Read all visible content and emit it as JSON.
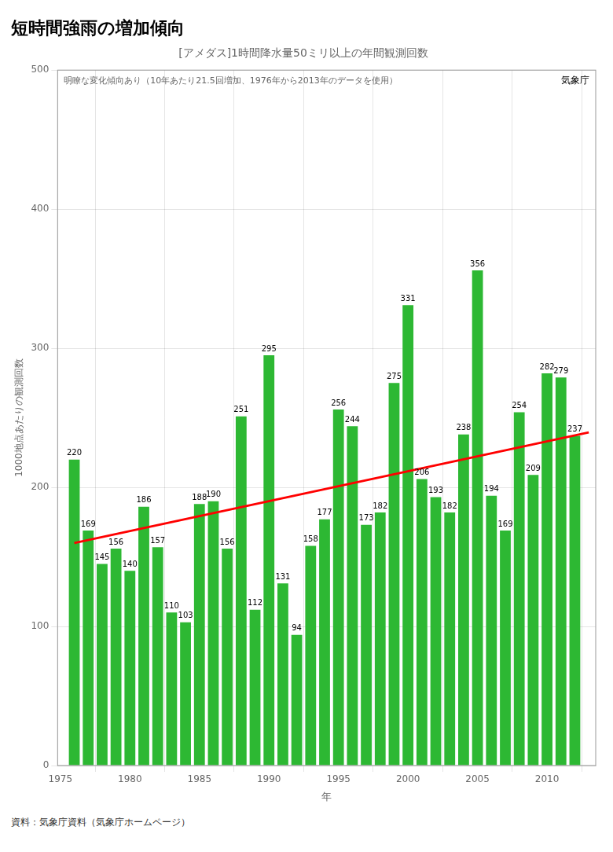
{
  "chart_data": {
    "type": "bar",
    "title": "短時間強雨の増加傾向",
    "subtitle": "[アメダス]1時間降水量50ミリ以上の年間観測回数",
    "x_label": "年",
    "y_label": "1000地点あたりの観測回数",
    "annotations": [
      "明瞭な変化傾向あり（10年あたり21.5回増加、1976年から2013年のデータを使用）",
      "気象庁",
      "資料：気象庁資料（気象庁ホームページ）"
    ],
    "x": [
      1976,
      1977,
      1978,
      1979,
      1980,
      1981,
      1982,
      1983,
      1984,
      1985,
      1986,
      1987,
      1988,
      1989,
      1990,
      1991,
      1992,
      1993,
      1994,
      1995,
      1996,
      1997,
      1998,
      1999,
      2000,
      2001,
      2002,
      2003,
      2004,
      2005,
      2006,
      2007,
      2008,
      2009,
      2010,
      2011,
      2012
    ],
    "series": [
      {
        "type": "bar",
        "color": "#2db833",
        "data_labels": true,
        "values": [
          220,
          169,
          145,
          156,
          140,
          186,
          157,
          110,
          103,
          188,
          190,
          156,
          251,
          112,
          295,
          131,
          94,
          158,
          177,
          256,
          244,
          173,
          182,
          275,
          331,
          206,
          193,
          182,
          238,
          356,
          194,
          169,
          254,
          209,
          282,
          279,
          237
        ]
      },
      {
        "type": "line",
        "color": "#ff0000",
        "line_style": "solid",
        "x": [
          1976,
          2013
        ],
        "values": [
          160,
          239.55
        ]
      }
    ],
    "xlim": [
      1974.8,
      2013.5
    ],
    "xticks": [
      1975,
      1980,
      1985,
      1990,
      1995,
      2000,
      2005,
      2010
    ],
    "ylim": [
      0,
      500
    ],
    "yticks": [
      0,
      100,
      200,
      300,
      400,
      500
    ],
    "grid": true
  }
}
